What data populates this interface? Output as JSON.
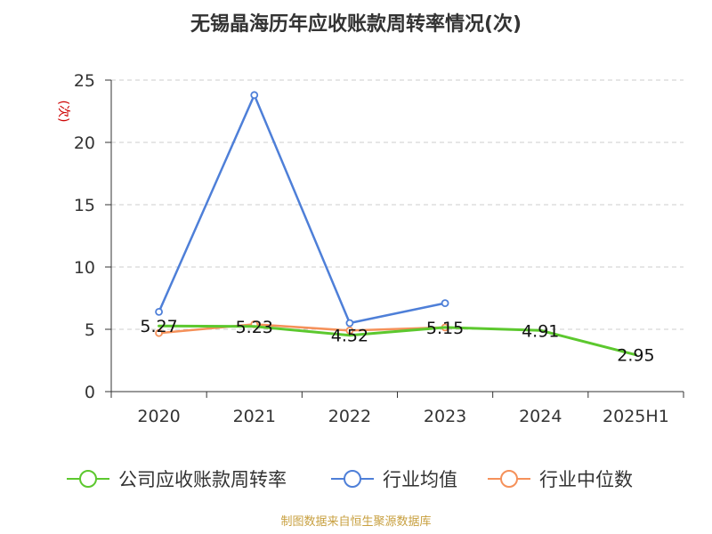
{
  "chart_data": {
    "type": "line",
    "title": "无锡晶海历年应收账款周转率情况(次)",
    "ylabel": "(次)",
    "categories": [
      "2020",
      "2021",
      "2022",
      "2023",
      "2024",
      "2025H1"
    ],
    "yticks": [
      "0",
      "5",
      "10",
      "15",
      "20",
      "25"
    ],
    "ylim": [
      0,
      25
    ],
    "grid": true,
    "legend_position": "bottom",
    "series": [
      {
        "name": "公司应收账款周转率",
        "color": "#5cc82e",
        "values": [
          5.27,
          5.23,
          4.52,
          5.15,
          4.91,
          2.95
        ],
        "labels": [
          "5.27",
          "5.23",
          "4.52",
          "5.15",
          "4.91",
          "2.95"
        ],
        "markers": false
      },
      {
        "name": "行业均值",
        "color": "#4e7fd8",
        "values": [
          6.4,
          23.8,
          5.5,
          7.1,
          null,
          null
        ],
        "markers": true
      },
      {
        "name": "行业中位数",
        "color": "#f5915a",
        "values": [
          4.7,
          5.4,
          4.9,
          5.15,
          null,
          null
        ],
        "markers": true
      }
    ],
    "source": "制图数据来自恒生聚源数据库",
    "colors": {
      "title": "#333333",
      "axis": "#333333",
      "grid": "#cccccc",
      "ylabel": "#cc0000",
      "source": "#c8a040"
    }
  }
}
